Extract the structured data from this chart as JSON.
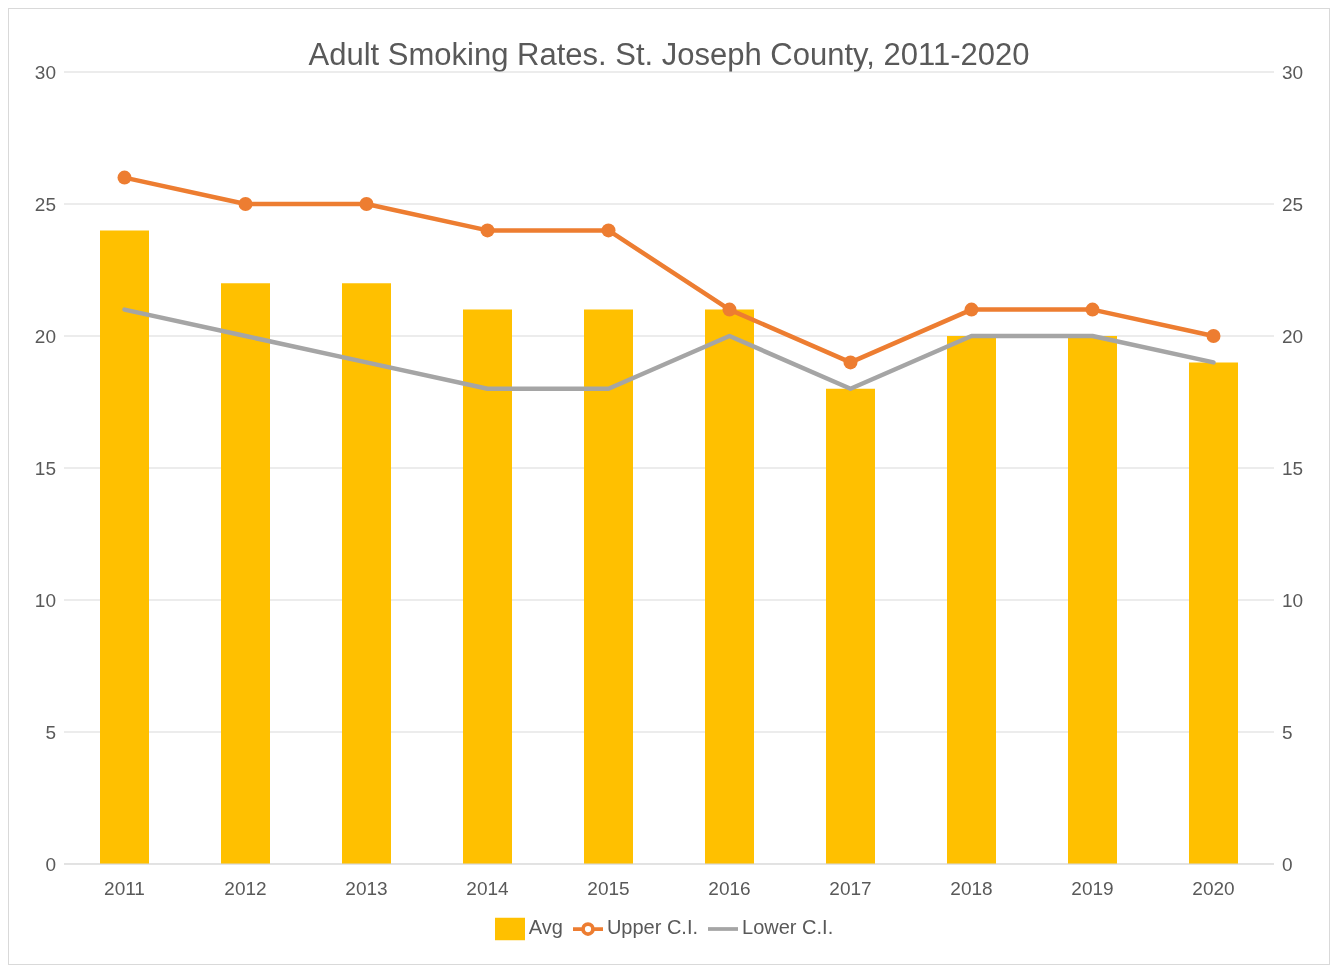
{
  "chart_data": {
    "type": "bar",
    "title": "Adult Smoking Rates.  St. Joseph County, 2011-2020",
    "categories": [
      "2011",
      "2012",
      "2013",
      "2014",
      "2015",
      "2016",
      "2017",
      "2018",
      "2019",
      "2020"
    ],
    "series": [
      {
        "name": "Avg",
        "color": "#ffc000",
        "values": [
          24,
          22,
          22,
          21,
          21,
          21,
          18,
          20,
          20,
          19
        ]
      },
      {
        "name": "Upper C.I.",
        "type": "line",
        "color": "#ed7d31",
        "marker": "circle",
        "values": [
          26,
          25,
          25,
          24,
          24,
          21,
          19,
          21,
          21,
          20
        ]
      },
      {
        "name": "Lower C.I.",
        "type": "line",
        "color": "#a5a5a5",
        "marker": "none",
        "values": [
          21,
          20,
          19,
          18,
          18,
          20,
          18,
          20,
          20,
          19
        ]
      }
    ],
    "ylim": [
      0,
      30
    ],
    "yticks": [
      0,
      5,
      10,
      15,
      20,
      25,
      30
    ],
    "y2lim": [
      0,
      30
    ],
    "y2ticks": [
      0,
      5,
      10,
      15,
      20,
      25,
      30
    ],
    "grid": "y",
    "legend": "bottom",
    "line_style": "solid"
  }
}
